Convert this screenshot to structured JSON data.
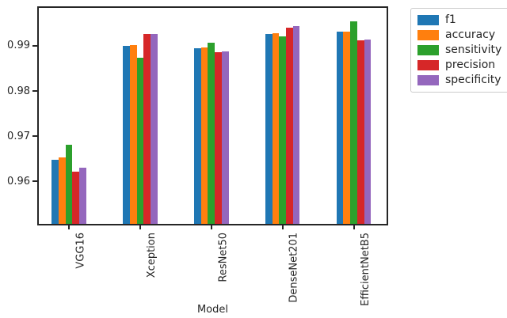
{
  "chart_data": {
    "type": "bar",
    "title": "",
    "xlabel": "Model",
    "ylabel": "",
    "categories": [
      "VGG16",
      "Xception",
      "ResNet50",
      "DenseNet201",
      "EfficientNetB5"
    ],
    "series": [
      {
        "name": "f1",
        "color": "#1f77b4",
        "values": [
          0.9648,
          0.99,
          0.9895,
          0.9927,
          0.9932
        ]
      },
      {
        "name": "accuracy",
        "color": "#ff7f0e",
        "values": [
          0.9653,
          0.9901,
          0.9897,
          0.9928,
          0.9931
        ]
      },
      {
        "name": "sensitivity",
        "color": "#2ca02c",
        "values": [
          0.9681,
          0.9874,
          0.9907,
          0.9921,
          0.9955
        ]
      },
      {
        "name": "precision",
        "color": "#d62728",
        "values": [
          0.9621,
          0.9926,
          0.9886,
          0.994,
          0.9912
        ]
      },
      {
        "name": "specificity",
        "color": "#9467bd",
        "values": [
          0.9631,
          0.9927,
          0.9888,
          0.9944,
          0.9914
        ]
      }
    ],
    "yticks": [
      0.96,
      0.97,
      0.98,
      0.99
    ],
    "ytick_format": "0.00",
    "ylim": [
      0.9506,
      0.9984
    ],
    "grid": false,
    "legend_position": "upper-right-outside",
    "axis_color": "#262626",
    "legend_border_color": "#cccccc"
  }
}
